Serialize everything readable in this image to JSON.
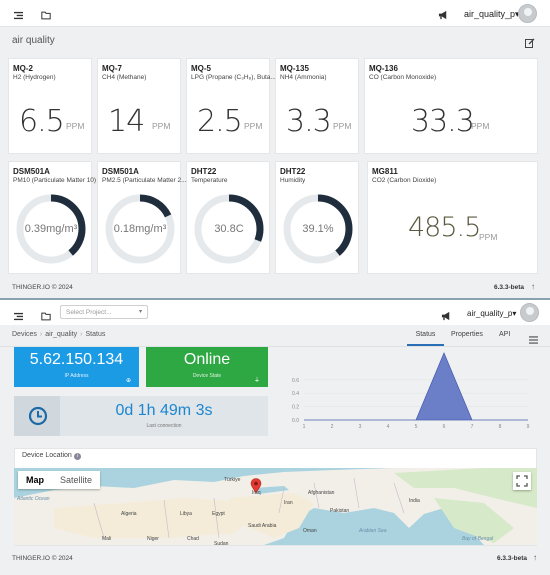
{
  "top": {
    "user": "air_quality_p▾",
    "dashboard_title": "air quality"
  },
  "cards": [
    {
      "title": "MQ-2",
      "subtitle": "H2 (Hydrogen)",
      "value": "6.5",
      "unit": "PPM"
    },
    {
      "title": "MQ-7",
      "subtitle": "CH4 (Methane)",
      "value": "14",
      "unit": "PPM"
    },
    {
      "title": "MQ-5",
      "subtitle": "LPG (Propane (C₃H₈), Buta...",
      "value": "2.5",
      "unit": "PPM"
    },
    {
      "title": "MQ-135",
      "subtitle": "NH4 (Ammonia)",
      "value": "3.3",
      "unit": "PPM"
    },
    {
      "title": "MQ-136",
      "subtitle": "CO (Carbon Monoxide)",
      "value": "33.3",
      "unit": "PPM"
    }
  ],
  "gauges": [
    {
      "title": "DSM501A",
      "subtitle": "PM10 (Particulate Matter 10)",
      "text": "0.39mg/m³",
      "fraction": 0.39
    },
    {
      "title": "DSM501A",
      "subtitle": "PM2.5 (Particulate Matter 2...",
      "text": "0.18mg/m³",
      "fraction": 0.18
    },
    {
      "title": "DHT22",
      "subtitle": "Temperature",
      "text": "30.8C",
      "fraction": 0.31
    },
    {
      "title": "DHT22",
      "subtitle": "Humidity",
      "text": "39.1%",
      "fraction": 0.391
    }
  ],
  "co2": {
    "title": "MG811",
    "subtitle": "CO2 (Carbon Dioxide)",
    "value": "485.5",
    "unit": "PPM"
  },
  "footer": {
    "copyright": "THINGER.IO © 2024",
    "version": "6.3.3-beta"
  },
  "device": {
    "select_placeholder": "Select Project...",
    "user": "air_quality_p▾",
    "breadcrumb": [
      "Devices",
      "air_quality",
      "Status"
    ],
    "tabs": [
      "Status",
      "Properties",
      "API"
    ],
    "ip": "5.62.150.134",
    "ip_label": "IP Address",
    "state": "Online",
    "state_label": "Device State",
    "connection": "0d 1h 49m 3s",
    "connection_label": "Last connection",
    "location_label": "Device Location",
    "map_buttons": [
      "Map",
      "Satellite"
    ],
    "map_labels": [
      "Türkiye",
      "Iraq",
      "Iran",
      "Afghanistan",
      "Pakistan",
      "India",
      "Algeria",
      "Libya",
      "Egypt",
      "Saudi Arabia",
      "Oman",
      "Mali",
      "Niger",
      "Chad",
      "Sudan",
      "Atlantic Ocean",
      "Arabian Sea",
      "Bay of Bengal"
    ]
  },
  "footer2": {
    "copyright": "THINGER.IO © 2024",
    "version": "6.3.3-beta"
  },
  "chart_data": {
    "type": "area",
    "x": [
      1,
      2,
      3,
      4,
      5,
      6,
      7,
      8,
      9
    ],
    "values": [
      0,
      0,
      0,
      0,
      0,
      1,
      0,
      0,
      0
    ],
    "ylim": [
      0,
      1.0
    ],
    "yticks": [
      "0.0",
      "0.2",
      "0.4",
      "0.6"
    ],
    "xticks": [
      "1",
      "2",
      "3",
      "4",
      "5",
      "6",
      "7",
      "8",
      "9"
    ],
    "color": "#6b7fc9"
  },
  "colors": {
    "gauge": "#1f2d3d",
    "gauge_track": "#e6e9eb",
    "blue_tile": "#1c9be5",
    "green_tile": "#2ea843"
  }
}
